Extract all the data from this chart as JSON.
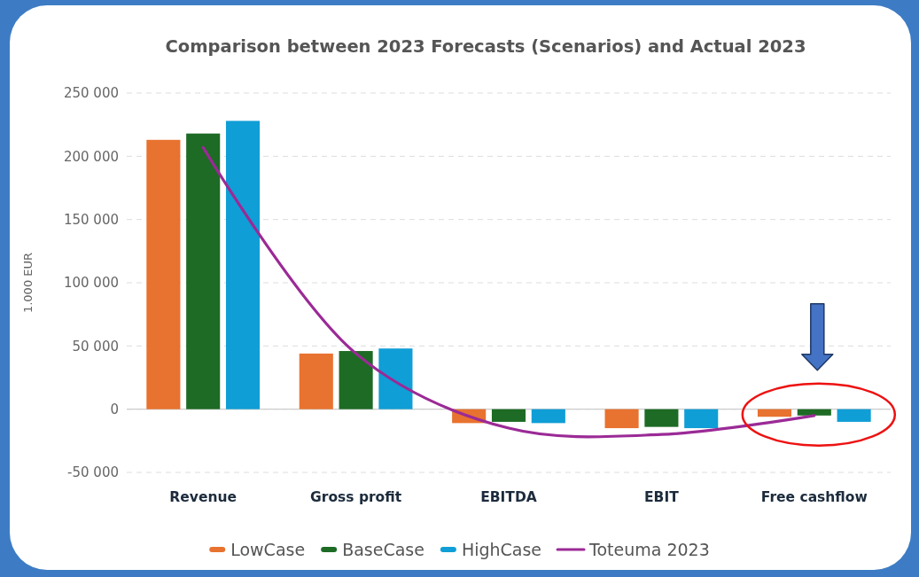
{
  "chart_data": {
    "type": "bar",
    "title": "Comparison between 2023 Forecasts (Scenarios) and Actual 2023",
    "ylabel": "1.000 EUR",
    "categories": [
      "Revenue",
      "Gross profit",
      "EBITDA",
      "EBIT",
      "Free cashflow"
    ],
    "series": [
      {
        "name": "LowCase",
        "color": "#e8722f",
        "values": [
          213000,
          44000,
          -11000,
          -15000,
          -6000
        ]
      },
      {
        "name": "BaseCase",
        "color": "#1d6b25",
        "values": [
          218000,
          46000,
          -10000,
          -14000,
          -5000
        ]
      },
      {
        "name": "HighCase",
        "color": "#109ed6",
        "values": [
          228000,
          48000,
          -11000,
          -15000,
          -10000
        ]
      },
      {
        "name": "Toteuma 2023",
        "type": "line",
        "color": "#9b2a96",
        "values": [
          207000,
          44000,
          -15000,
          -20000,
          -5000
        ]
      }
    ],
    "ylim": [
      -50000,
      250000
    ],
    "yticks": [
      {
        "value": -50000,
        "label": "-50 000"
      },
      0,
      {
        "value": 50000,
        "label": "50 000"
      },
      {
        "value": 100000,
        "label": "100 000"
      },
      {
        "value": 150000,
        "label": "150 000"
      },
      {
        "value": 200000,
        "label": "200 000"
      },
      {
        "value": 250000,
        "label": "250 000"
      }
    ],
    "grid": "y",
    "legend": "bottom"
  }
}
